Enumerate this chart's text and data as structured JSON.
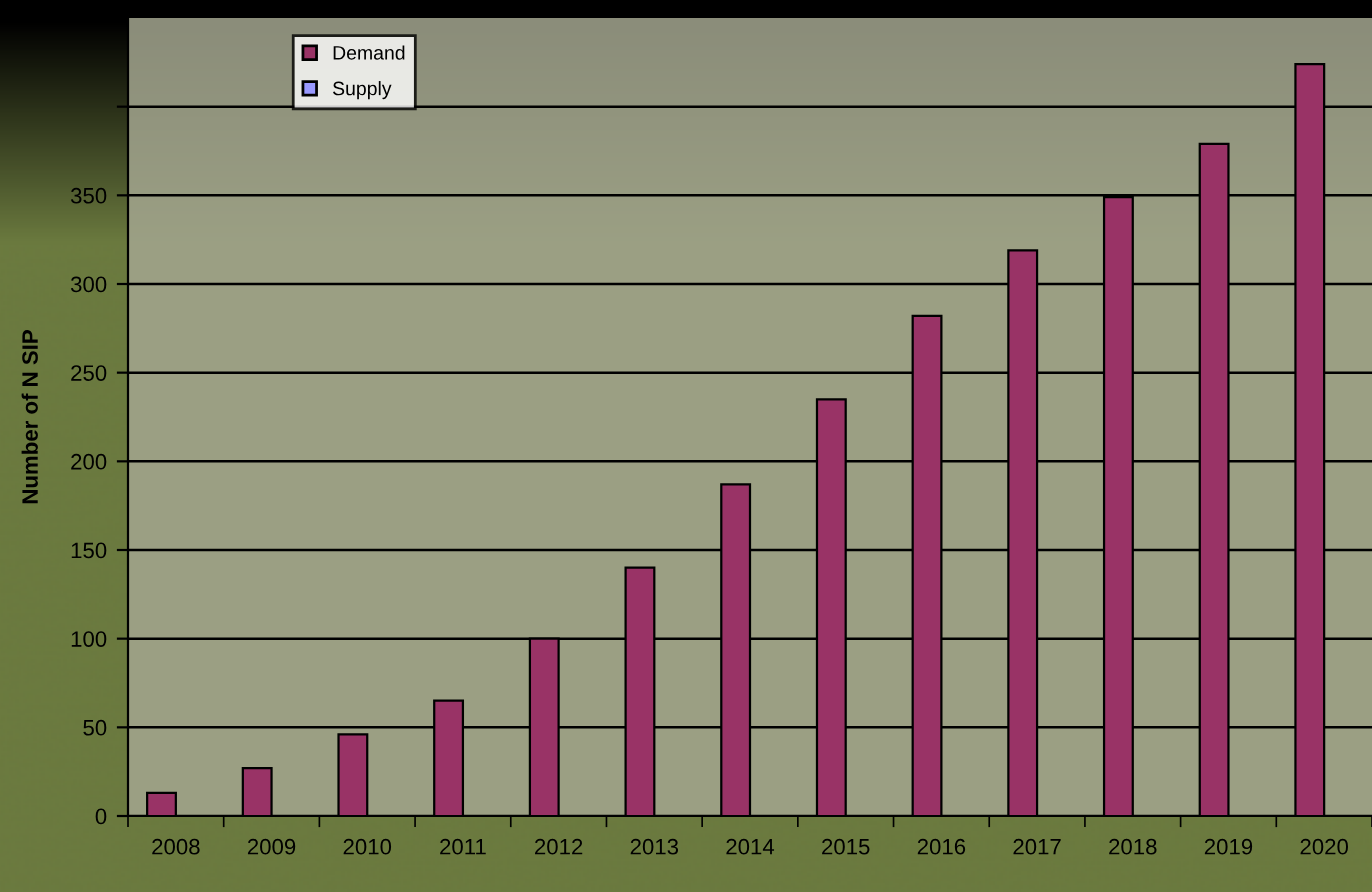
{
  "chart_data": {
    "type": "bar",
    "ylabel": "Number of N SIP",
    "categories": [
      "2008",
      "2009",
      "2010",
      "2011",
      "2012",
      "2013",
      "2014",
      "2015",
      "2016",
      "2017",
      "2018",
      "2019",
      "2020"
    ],
    "series": [
      {
        "name": "Demand",
        "color": "#993366",
        "values": [
          13,
          27,
          46,
          65,
          100,
          140,
          187,
          235,
          282,
          319,
          349,
          379,
          424
        ]
      },
      {
        "name": "Supply",
        "color": "#9999ff",
        "values": [
          null,
          null,
          null,
          null,
          null,
          null,
          null,
          null,
          null,
          null,
          null,
          null,
          null
        ]
      }
    ],
    "ylim": [
      0,
      450
    ],
    "yticks": [
      0,
      50,
      100,
      150,
      200,
      250,
      300,
      350,
      {
        "value": 400,
        "label": null
      }
    ],
    "grid": "y",
    "legend": "top left"
  }
}
